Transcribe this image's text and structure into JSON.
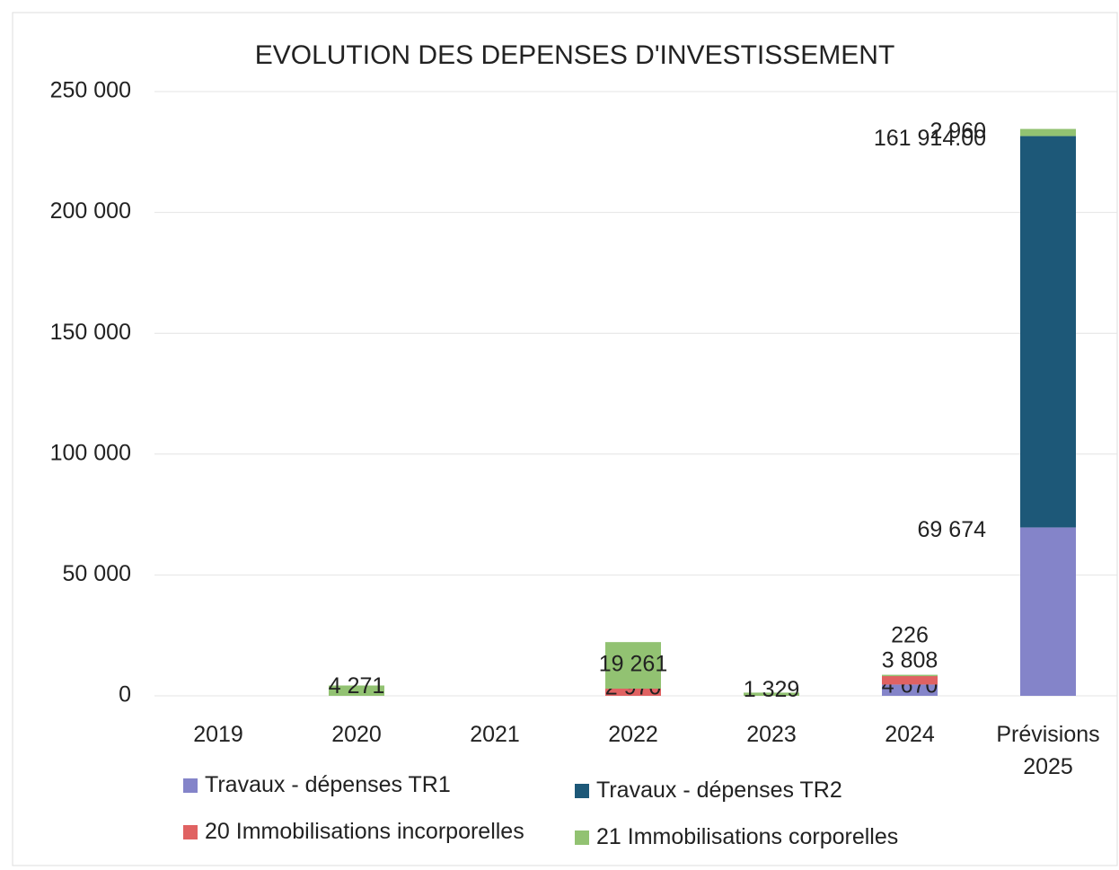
{
  "chart_data": {
    "type": "stacked_bar",
    "title": "EVOLUTION DES DEPENSES D'INVESTISSEMENT",
    "categories": [
      "2019",
      "2020",
      "2021",
      "2022",
      "2023",
      "2024",
      "Prévisions 2025"
    ],
    "series": [
      {
        "name": "Travaux - dépenses TR1",
        "color": "#8484c9",
        "values": [
          null,
          null,
          null,
          null,
          null,
          4670,
          69674
        ],
        "value_labels": [
          null,
          null,
          null,
          null,
          null,
          "4 670",
          "69 674"
        ]
      },
      {
        "name": "Travaux - dépenses TR2",
        "color": "#1d5878",
        "values": [
          null,
          null,
          null,
          null,
          null,
          null,
          161914
        ],
        "value_labels": [
          null,
          null,
          null,
          null,
          null,
          null,
          "161 914.00"
        ]
      },
      {
        "name": "20 Immobilisations incorporelles",
        "color": "#e06262",
        "values": [
          null,
          null,
          null,
          2970,
          null,
          3808,
          null
        ],
        "value_labels": [
          null,
          null,
          null,
          "2 970",
          null,
          "3 808",
          null
        ]
      },
      {
        "name": "21 Immobilisations corporelles",
        "color": "#92c272",
        "values": [
          null,
          4271,
          null,
          19261,
          1329,
          226,
          2960
        ],
        "value_labels": [
          null,
          "4 271",
          null,
          "19 261",
          "1 329",
          "226",
          "2 960"
        ]
      }
    ],
    "ylim": [
      0,
      250000
    ],
    "yticks": [
      0,
      {
        "value": 50000,
        "label": "50 000"
      },
      {
        "value": 100000,
        "label": "100 000"
      },
      {
        "value": 150000,
        "label": "150 000"
      },
      {
        "value": 200000,
        "label": "200 000"
      },
      {
        "value": 250000,
        "label": "250 000"
      }
    ],
    "grid": true
  }
}
